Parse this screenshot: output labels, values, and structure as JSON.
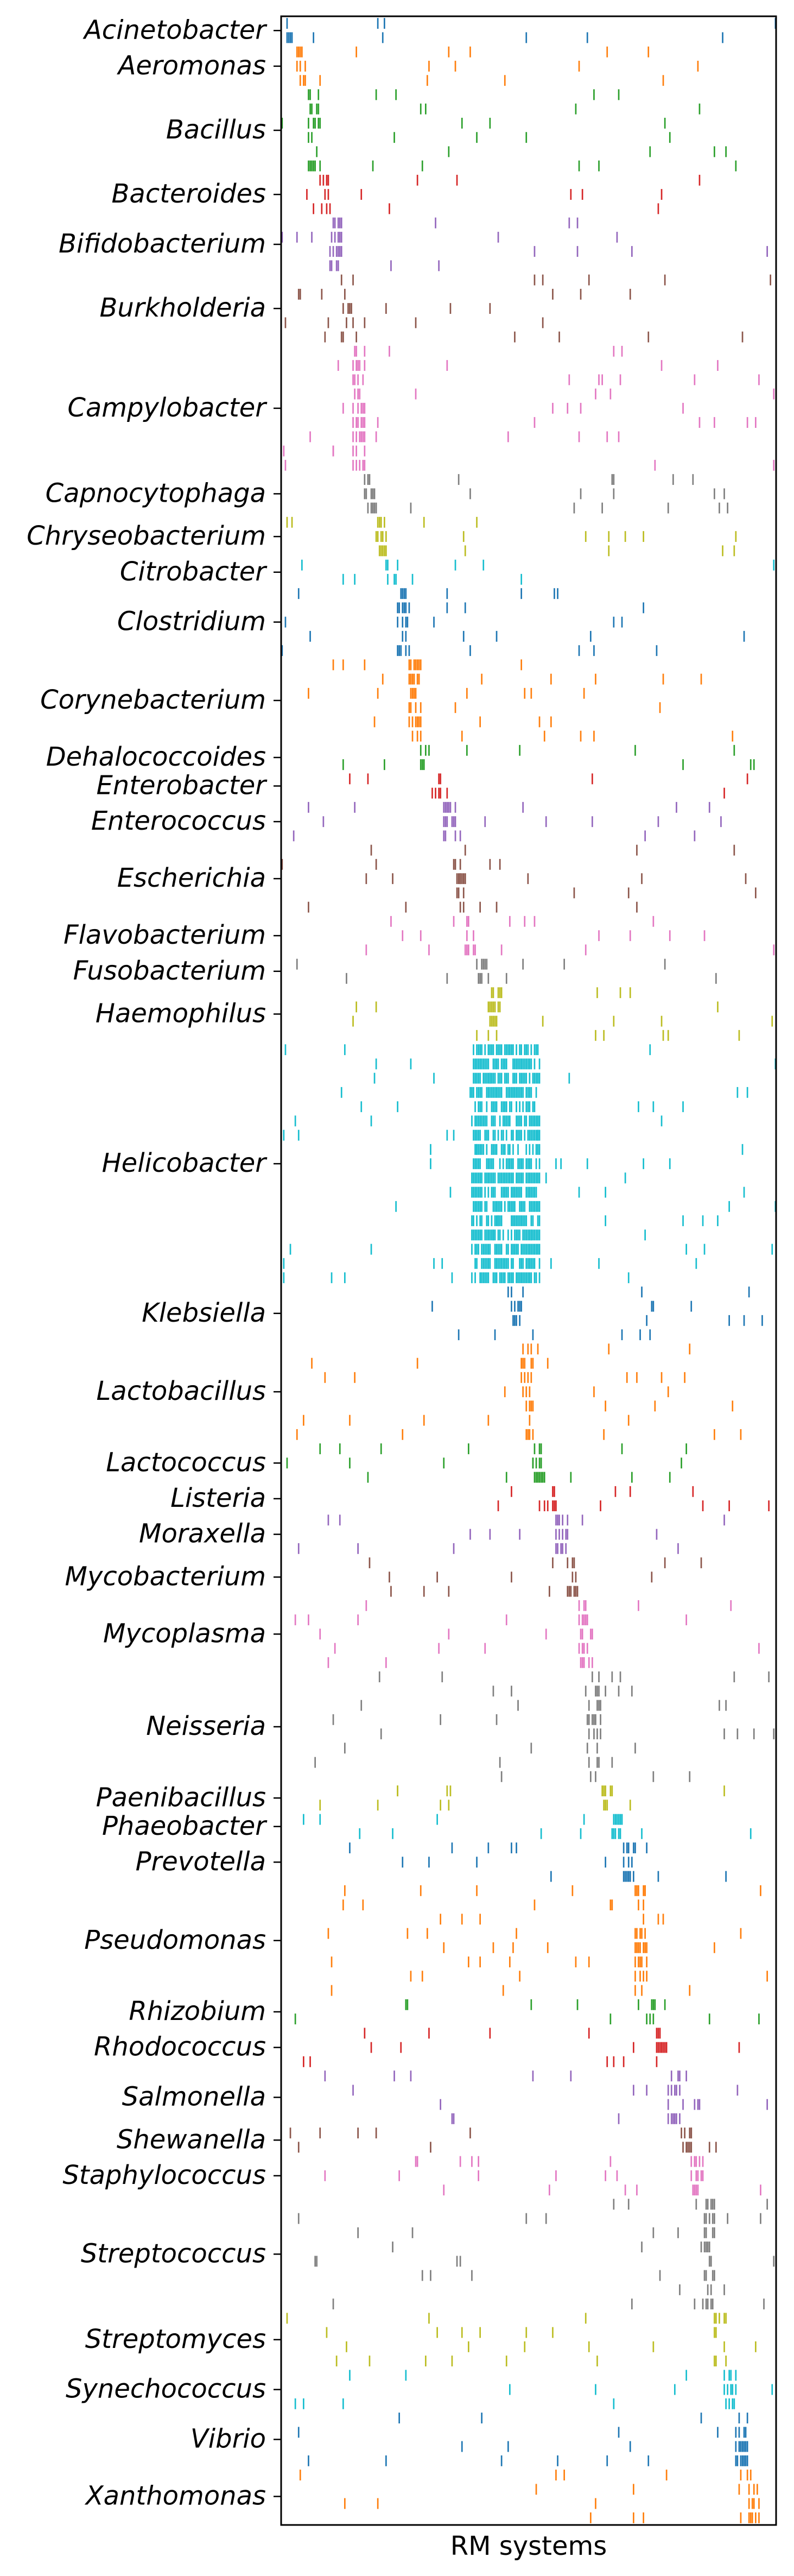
{
  "chart_data": {
    "type": "scatter",
    "title": "",
    "xlabel": "RM systems",
    "ylabel": "",
    "grid": false,
    "legend": "none",
    "x_tick_labels": [],
    "palette": [
      "#1f77b4",
      "#ff7f0e",
      "#2ca02c",
      "#d62728",
      "#9467bd",
      "#8c564b",
      "#e377c2",
      "#7f7f7f",
      "#bcbd22",
      "#17becf"
    ],
    "genera": [
      {
        "name": "Acinetobacter",
        "rows": 2
      },
      {
        "name": "Aeromonas",
        "rows": 3
      },
      {
        "name": "Bacillus",
        "rows": 6
      },
      {
        "name": "Bacteroides",
        "rows": 3
      },
      {
        "name": "Bifidobacterium",
        "rows": 4
      },
      {
        "name": "Burkholderia",
        "rows": 5
      },
      {
        "name": "Campylobacter",
        "rows": 9
      },
      {
        "name": "Capnocytophaga",
        "rows": 3
      },
      {
        "name": "Chryseobacterium",
        "rows": 3
      },
      {
        "name": "Citrobacter",
        "rows": 2
      },
      {
        "name": "Clostridium",
        "rows": 5
      },
      {
        "name": "Corynebacterium",
        "rows": 6
      },
      {
        "name": "Dehalococcoides",
        "rows": 2
      },
      {
        "name": "Enterobacter",
        "rows": 2
      },
      {
        "name": "Enterococcus",
        "rows": 3
      },
      {
        "name": "Escherichia",
        "rows": 5
      },
      {
        "name": "Flavobacterium",
        "rows": 3
      },
      {
        "name": "Fusobacterium",
        "rows": 2
      },
      {
        "name": "Haemophilus",
        "rows": 4
      },
      {
        "name": "Helicobacter",
        "rows": 17
      },
      {
        "name": "Klebsiella",
        "rows": 4
      },
      {
        "name": "Lactobacillus",
        "rows": 7
      },
      {
        "name": "Lactococcus",
        "rows": 3
      },
      {
        "name": "Listeria",
        "rows": 2
      },
      {
        "name": "Moraxella",
        "rows": 3
      },
      {
        "name": "Mycobacterium",
        "rows": 3
      },
      {
        "name": "Mycoplasma",
        "rows": 5
      },
      {
        "name": "Neisseria",
        "rows": 8
      },
      {
        "name": "Paenibacillus",
        "rows": 2
      },
      {
        "name": "Phaeobacter",
        "rows": 2
      },
      {
        "name": "Prevotella",
        "rows": 3
      },
      {
        "name": "Pseudomonas",
        "rows": 8
      },
      {
        "name": "Rhizobium",
        "rows": 2
      },
      {
        "name": "Rhodococcus",
        "rows": 3
      },
      {
        "name": "Salmonella",
        "rows": 4
      },
      {
        "name": "Shewanella",
        "rows": 2
      },
      {
        "name": "Staphylococcus",
        "rows": 3
      },
      {
        "name": "Streptococcus",
        "rows": 8
      },
      {
        "name": "Streptomyces",
        "rows": 4
      },
      {
        "name": "Synechococcus",
        "rows": 3
      },
      {
        "name": "Vibrio",
        "rows": 4
      },
      {
        "name": "Xanthomonas",
        "rows": 4
      }
    ]
  }
}
